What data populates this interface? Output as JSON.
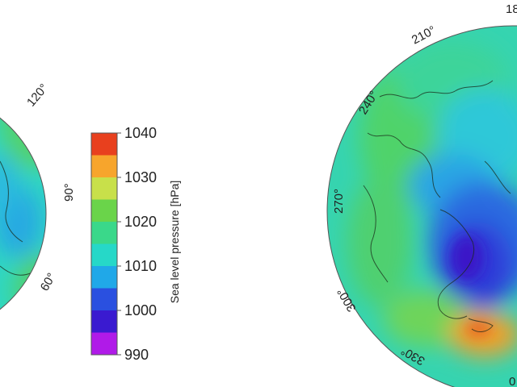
{
  "colorbar": {
    "title": "Sea level pressure [hPa]",
    "ticks": [
      "1040",
      "1030",
      "1020",
      "1010",
      "1000",
      "990"
    ],
    "colors": [
      "#e8401e",
      "#f7a52c",
      "#c8e04a",
      "#6ad44a",
      "#3ad88a",
      "#26d8c8",
      "#20a8e8",
      "#2a50e0",
      "#3a1ad0",
      "#b01ae8"
    ]
  },
  "left_map": {
    "lon_labels": [
      "120°",
      "90°",
      "60°"
    ]
  },
  "right_map": {
    "lon_labels": [
      "210°",
      "240°",
      "270°",
      "300°",
      "330°",
      "18",
      "0"
    ]
  },
  "colors": {
    "land_outline": "#1a2a1a",
    "background": "#ffffff"
  }
}
